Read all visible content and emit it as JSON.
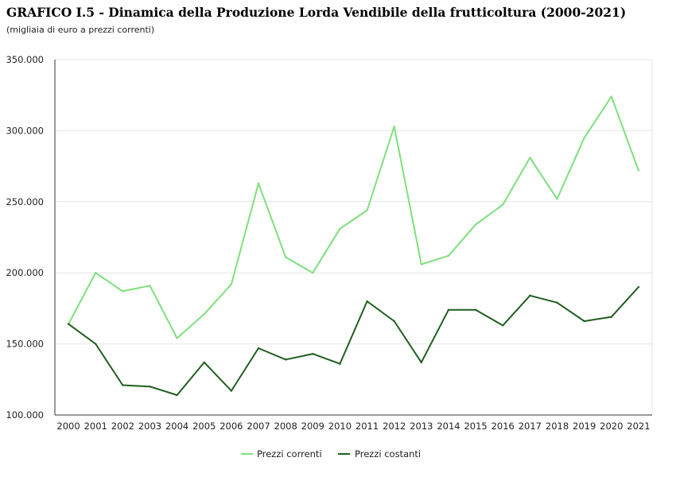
{
  "title": "GRAFICO I.5 - Dinamica della Produzione Lorda Vendibile della frutticoltura (2000-2021)",
  "subtitle": "(migliaia di euro a prezzi correnti)",
  "colors": {
    "correnti": "#7de07d",
    "costanti": "#1f5e1f",
    "grid": "#e6e6e6",
    "axis": "#333333"
  },
  "chart_data": {
    "type": "line",
    "categories": [
      "2000",
      "2001",
      "2002",
      "2003",
      "2004",
      "2005",
      "2006",
      "2007",
      "2008",
      "2009",
      "2010",
      "2011",
      "2012",
      "2013",
      "2014",
      "2015",
      "2016",
      "2017",
      "2018",
      "2019",
      "2020",
      "2021"
    ],
    "y_ticks": [
      "100.000",
      "150.000",
      "200.000",
      "250.000",
      "300.000",
      "350.000"
    ],
    "y_tick_values": [
      100000,
      150000,
      200000,
      250000,
      300000,
      350000
    ],
    "ylim": [
      100000,
      350000
    ],
    "grid": true,
    "legend_position": "bottom",
    "series": [
      {
        "name": "Prezzi correnti",
        "color_key": "correnti",
        "values": [
          164000,
          200000,
          187000,
          191000,
          154000,
          171000,
          192000,
          263000,
          211000,
          200000,
          231000,
          244000,
          303000,
          206000,
          212000,
          234000,
          248000,
          281000,
          252000,
          295000,
          324000,
          272000
        ]
      },
      {
        "name": "Prezzi costanti",
        "color_key": "costanti",
        "values": [
          164000,
          150000,
          121000,
          120000,
          114000,
          137000,
          117000,
          147000,
          139000,
          143000,
          136000,
          180000,
          166000,
          137000,
          174000,
          174000,
          163000,
          184000,
          179000,
          166000,
          169000,
          190000
        ]
      }
    ]
  }
}
